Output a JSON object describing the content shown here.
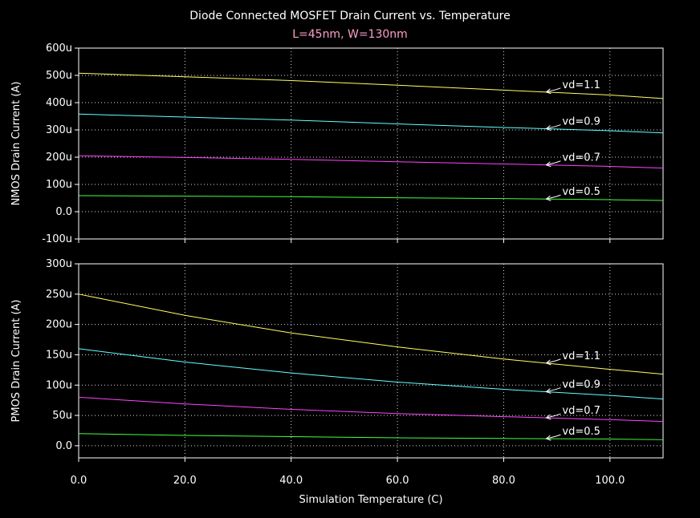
{
  "chart_data": [
    {
      "type": "line",
      "title": "Diode Connected MOSFET Drain Current vs. Temperature",
      "subtitle": "L=45nm, W=130nm",
      "xlabel": "",
      "ylabel": "NMOS Drain Current (A)",
      "xlim": [
        0,
        110
      ],
      "ylim": [
        -100,
        600
      ],
      "grid": true,
      "x_ticks": [
        0,
        20,
        40,
        60,
        80,
        100
      ],
      "x_tick_labels": [
        "0.0",
        "20.0",
        "40.0",
        "60.0",
        "80.0",
        "100.0"
      ],
      "y_ticks": [
        600,
        500,
        400,
        300,
        200,
        100,
        0,
        -100
      ],
      "y_tick_labels": [
        "600u",
        "500u",
        "400u",
        "300u",
        "200u",
        "100u",
        "0.0",
        "-100u"
      ],
      "series": [
        {
          "name": "vd=1.1",
          "color": "#ffff66",
          "x": [
            0,
            20,
            40,
            60,
            80,
            100,
            110
          ],
          "values": [
            508,
            495,
            481,
            464,
            446,
            428,
            415
          ]
        },
        {
          "name": "vd=0.9",
          "color": "#66ffff",
          "x": [
            0,
            20,
            40,
            60,
            80,
            100,
            110
          ],
          "values": [
            358,
            347,
            336,
            322,
            309,
            297,
            289
          ]
        },
        {
          "name": "vd=0.7",
          "color": "#ff44ff",
          "x": [
            0,
            20,
            40,
            60,
            80,
            100,
            110
          ],
          "values": [
            205,
            199,
            192,
            183,
            175,
            166,
            160
          ]
        },
        {
          "name": "vd=0.5",
          "color": "#44ff44",
          "x": [
            0,
            20,
            40,
            60,
            80,
            100,
            110
          ],
          "values": [
            59,
            57,
            55,
            51,
            48,
            44,
            41
          ]
        }
      ],
      "label_x": 88
    },
    {
      "type": "line",
      "xlabel": "Simulation Temperature (C)",
      "ylabel": "PMOS Drain Current (A)",
      "xlim": [
        0,
        110
      ],
      "ylim": [
        -20,
        300
      ],
      "grid": true,
      "x_ticks": [
        0,
        20,
        40,
        60,
        80,
        100
      ],
      "x_tick_labels": [
        "0.0",
        "20.0",
        "40.0",
        "60.0",
        "80.0",
        "100.0"
      ],
      "y_ticks": [
        300,
        250,
        200,
        150,
        100,
        50,
        0
      ],
      "y_tick_labels": [
        "300u",
        "250u",
        "200u",
        "150u",
        "100u",
        "50u",
        "0.0"
      ],
      "series": [
        {
          "name": "vd=1.1",
          "color": "#ffff66",
          "x": [
            0,
            20,
            40,
            60,
            80,
            100,
            110
          ],
          "values": [
            250,
            215,
            186,
            163,
            143,
            126,
            118
          ]
        },
        {
          "name": "vd=0.9",
          "color": "#66ffff",
          "x": [
            0,
            20,
            40,
            60,
            80,
            100,
            110
          ],
          "values": [
            160,
            138,
            120,
            105,
            93,
            83,
            77
          ]
        },
        {
          "name": "vd=0.7",
          "color": "#ff44ff",
          "x": [
            0,
            20,
            40,
            60,
            80,
            100,
            110
          ],
          "values": [
            80,
            69,
            60,
            53,
            48,
            43,
            40
          ]
        },
        {
          "name": "vd=0.5",
          "color": "#44ff44",
          "x": [
            0,
            20,
            40,
            60,
            80,
            100,
            110
          ],
          "values": [
            20,
            17,
            15,
            13,
            12,
            11,
            10
          ]
        }
      ],
      "label_x": 88
    }
  ]
}
